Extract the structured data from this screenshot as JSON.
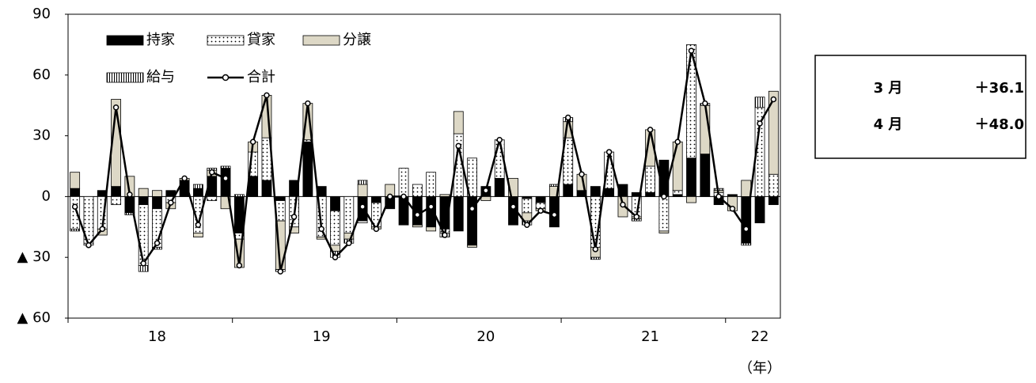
{
  "chart_data": {
    "type": "bar_line",
    "categories": [
      null,
      null,
      null,
      null,
      null,
      null,
      "18",
      null,
      null,
      null,
      null,
      null,
      null,
      null,
      null,
      null,
      null,
      null,
      "19",
      null,
      null,
      null,
      null,
      null,
      null,
      null,
      null,
      null,
      null,
      null,
      "20",
      null,
      null,
      null,
      null,
      null,
      null,
      null,
      null,
      null,
      null,
      null,
      "21",
      null,
      null,
      null,
      null,
      null,
      null,
      null,
      "22",
      null
    ],
    "x_label": "（年）",
    "series": [
      {
        "name": "持家",
        "color": "#000000",
        "pattern": "solid",
        "values": [
          4,
          0,
          3,
          5,
          -8,
          -4,
          -6,
          3,
          8,
          4,
          10,
          14,
          -18,
          10,
          8,
          -2,
          8,
          27,
          5,
          -7,
          0,
          -12,
          -3,
          -6,
          -14,
          -14,
          -15,
          -16,
          -17,
          -24,
          5,
          9,
          -14,
          -1,
          -3,
          -15,
          6,
          3,
          5,
          4,
          6,
          2,
          2,
          18,
          1,
          19,
          21,
          -4,
          1,
          -23,
          -13,
          -4
        ]
      },
      {
        "name": "貸家",
        "color": "#ffffff",
        "pattern": "dots",
        "values": [
          -16,
          -24,
          -16,
          -4,
          0,
          -30,
          -19,
          -3,
          0,
          -18,
          -2,
          0,
          -3,
          12,
          21,
          -10,
          -15,
          1,
          -20,
          -17,
          -18,
          -1,
          -12,
          0,
          14,
          6,
          12,
          -2,
          31,
          19,
          0,
          19,
          0,
          -7,
          -3,
          0,
          23,
          0,
          -25,
          18,
          0,
          -10,
          13,
          -17,
          2,
          56,
          0,
          2,
          0,
          0,
          44,
          11
        ]
      },
      {
        "name": "分譲",
        "color": "#ddd8c6",
        "pattern": "solid",
        "values": [
          8,
          0,
          -3,
          43,
          10,
          4,
          3,
          -3,
          1,
          -2,
          3,
          -6,
          -14,
          5,
          21,
          -24,
          -3,
          18,
          -1,
          -3,
          -3,
          6,
          -1,
          6,
          0,
          -1,
          -2,
          1,
          11,
          -1,
          -2,
          0,
          9,
          -4,
          -1,
          5,
          8,
          8,
          -5,
          0,
          -10,
          -1,
          18,
          -1,
          24,
          -3,
          24,
          1,
          -7,
          8,
          0,
          41
        ]
      },
      {
        "name": "給与",
        "color": "#ffffff",
        "pattern": "vstripes",
        "values": [
          -1,
          0,
          0,
          0,
          -1,
          -3,
          -1,
          0,
          0,
          2,
          1,
          1,
          1,
          0,
          0,
          -1,
          0,
          0,
          0,
          -3,
          -2,
          2,
          0,
          0,
          0,
          0,
          0,
          -2,
          0,
          0,
          0,
          0,
          0,
          -2,
          0,
          1,
          2,
          0,
          -1,
          0,
          0,
          -1,
          0,
          0,
          0,
          0,
          1,
          1,
          0,
          -1,
          5.1,
          0
        ]
      },
      {
        "name": "合計",
        "color": "#000000",
        "type": "line",
        "values": [
          -5,
          -24,
          -16,
          44,
          1,
          -33,
          -23,
          -3,
          9,
          -14,
          12,
          9,
          -34,
          27,
          50,
          -37,
          -10,
          46,
          -16,
          -30,
          -23,
          -5,
          -16,
          0,
          0,
          -9,
          -5,
          -19,
          25,
          -6,
          3,
          28,
          -5,
          -14,
          -7,
          -9,
          39,
          11,
          -26,
          22,
          -4,
          -10,
          33,
          0,
          27,
          72,
          46,
          0,
          -6,
          -16,
          36.1,
          48.0
        ]
      }
    ],
    "ylim": [
      -60,
      90
    ],
    "yticks": [
      {
        "value": -60,
        "label": "▲ 60"
      },
      {
        "value": -30,
        "label": "▲ 30"
      },
      0,
      30,
      60,
      90
    ],
    "grid": false
  },
  "inset": {
    "rows": [
      [
        "3 月",
        "＋36.1"
      ],
      [
        "4 月",
        "＋48.0"
      ]
    ]
  }
}
